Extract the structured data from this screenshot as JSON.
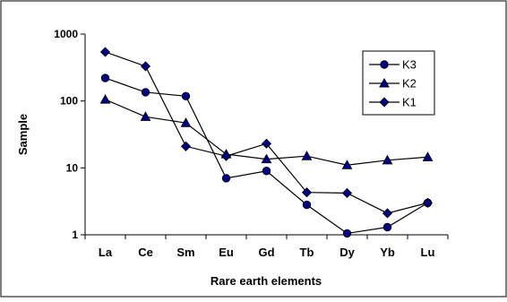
{
  "chart_data": {
    "type": "line",
    "xlabel": "Rare earth elements",
    "ylabel": "Sample",
    "y_scale": "log",
    "ylim": [
      1,
      1000
    ],
    "y_ticks": [
      "1",
      "10",
      "100",
      "1000"
    ],
    "categories": [
      "La",
      "Ce",
      "Sm",
      "Eu",
      "Gd",
      "Tb",
      "Dy",
      "Yb",
      "Lu"
    ],
    "legend_position": "top-right",
    "grid": false,
    "series": [
      {
        "name": "K3",
        "marker": "circle",
        "color": "#000080",
        "values": [
          220,
          135,
          118,
          7,
          9,
          2.8,
          1.05,
          1.3,
          3
        ]
      },
      {
        "name": "K2",
        "marker": "triangle",
        "color": "#000080",
        "values": [
          105,
          58,
          47,
          16,
          13.5,
          15,
          11,
          13,
          14.5
        ]
      },
      {
        "name": "K1",
        "marker": "diamond",
        "color": "#000080",
        "values": [
          540,
          330,
          21,
          15,
          23,
          4.3,
          4.2,
          2.1,
          3
        ]
      }
    ]
  }
}
